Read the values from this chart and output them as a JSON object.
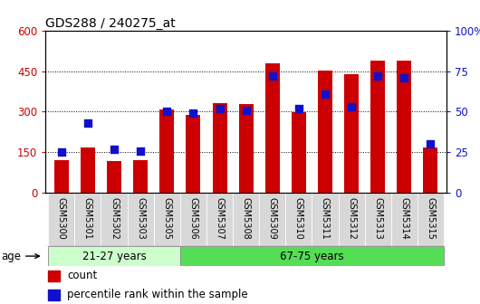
{
  "title": "GDS288 / 240275_at",
  "samples": [
    "GSM5300",
    "GSM5301",
    "GSM5302",
    "GSM5303",
    "GSM5305",
    "GSM5306",
    "GSM5307",
    "GSM5308",
    "GSM5309",
    "GSM5310",
    "GSM5311",
    "GSM5312",
    "GSM5313",
    "GSM5314",
    "GSM5315"
  ],
  "counts": [
    120,
    168,
    118,
    120,
    308,
    288,
    330,
    328,
    480,
    298,
    452,
    438,
    490,
    490,
    168
  ],
  "percentiles": [
    25,
    43,
    27,
    26,
    50,
    49,
    52,
    51,
    72,
    52,
    61,
    53,
    72,
    71,
    30
  ],
  "group1_label": "21-27 years",
  "group2_label": "67-75 years",
  "group1_count": 5,
  "left_ylim": [
    0,
    600
  ],
  "right_ylim": [
    0,
    100
  ],
  "left_yticks": [
    0,
    150,
    300,
    450,
    600
  ],
  "right_yticks": [
    0,
    25,
    50,
    75,
    100
  ],
  "right_yticklabels": [
    "0",
    "25",
    "50",
    "75",
    "100%"
  ],
  "bar_color": "#cc0000",
  "dot_color": "#1111cc",
  "group1_bg": "#ccffcc",
  "group2_bg": "#55dd55",
  "tick_bg": "#d8d8d8",
  "age_label": "age",
  "legend_count": "count",
  "legend_pct": "percentile rank within the sample",
  "bar_width": 0.55
}
